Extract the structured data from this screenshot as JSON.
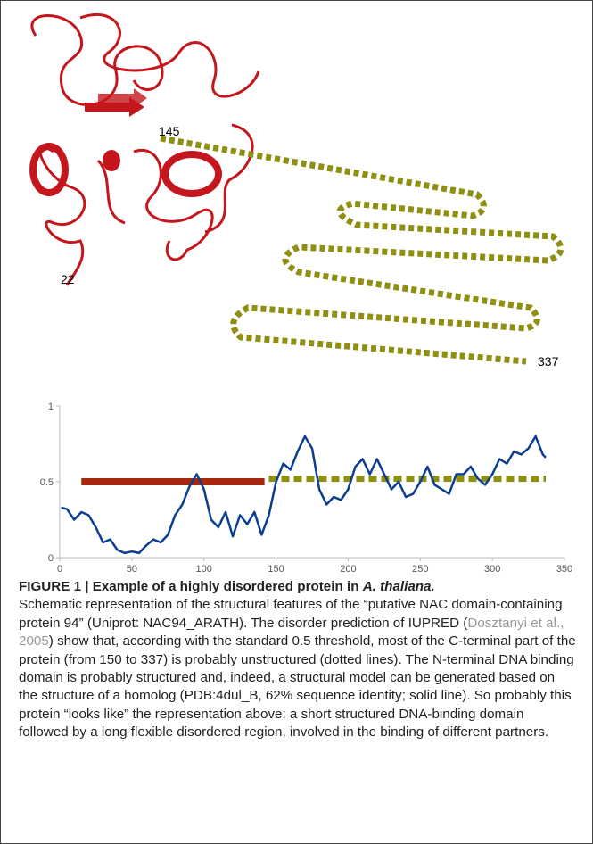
{
  "figure": {
    "labels": {
      "start": "145",
      "begin": "22",
      "end": "337"
    }
  },
  "chart_data": {
    "type": "line",
    "x": [
      1,
      5,
      10,
      15,
      20,
      25,
      30,
      35,
      40,
      45,
      50,
      55,
      60,
      65,
      70,
      75,
      80,
      85,
      90,
      95,
      100,
      105,
      110,
      115,
      120,
      125,
      130,
      135,
      140,
      145,
      150,
      155,
      160,
      165,
      170,
      175,
      180,
      185,
      190,
      195,
      200,
      205,
      210,
      215,
      220,
      225,
      230,
      235,
      240,
      245,
      250,
      255,
      260,
      265,
      270,
      275,
      280,
      285,
      290,
      295,
      300,
      305,
      310,
      315,
      320,
      325,
      330,
      335,
      337
    ],
    "values": [
      0.33,
      0.32,
      0.25,
      0.3,
      0.28,
      0.2,
      0.1,
      0.12,
      0.05,
      0.03,
      0.04,
      0.03,
      0.08,
      0.12,
      0.1,
      0.15,
      0.28,
      0.35,
      0.47,
      0.55,
      0.45,
      0.25,
      0.2,
      0.3,
      0.14,
      0.28,
      0.22,
      0.3,
      0.15,
      0.28,
      0.5,
      0.62,
      0.58,
      0.7,
      0.8,
      0.72,
      0.45,
      0.35,
      0.4,
      0.38,
      0.45,
      0.6,
      0.65,
      0.55,
      0.65,
      0.55,
      0.45,
      0.5,
      0.4,
      0.42,
      0.5,
      0.6,
      0.48,
      0.45,
      0.42,
      0.55,
      0.55,
      0.6,
      0.52,
      0.48,
      0.55,
      0.65,
      0.62,
      0.7,
      0.68,
      0.72,
      0.8,
      0.68,
      0.66
    ],
    "color": "#0b3d91",
    "segments": [
      {
        "x": [
          15,
          142
        ],
        "y": 0.5,
        "color": "#a8280e",
        "dashed": false
      },
      {
        "x": [
          145,
          337
        ],
        "y": 0.52,
        "color": "#8f8f12",
        "dashed": true
      }
    ],
    "xlim": [
      0,
      350
    ],
    "xticks": [
      0,
      50,
      100,
      150,
      200,
      250,
      300,
      350
    ],
    "ylim": [
      0,
      1
    ],
    "yticks": [
      0,
      0.5,
      1
    ],
    "grid": false
  },
  "caption": {
    "title": "FIGURE 1 | Example of a highly disordered protein in",
    "title_italic": "A. thaliana.",
    "body_before": "Schematic representation of the structural features of the “putative NAC domain-containing protein 94” (Uniprot: NAC94_ARATH). The disorder prediction of IUPRED (",
    "citation": "Dosztanyi et al., 2005",
    "body_after": ") show that, according with the standard 0.5 threshold, most of the C-terminal part of the protein (from 150 to 337) is probably unstructured (dotted lines). The N-terminal DNA binding domain is probably structured and, indeed, a structural model can be generated based on the structure of a homolog (PDB:4dul_B, 62% sequence identity; solid line). So probably this protein “looks like” the representation above: a short structured DNA-binding domain followed by a long flexible disordered region, involved in the binding of different partners."
  }
}
